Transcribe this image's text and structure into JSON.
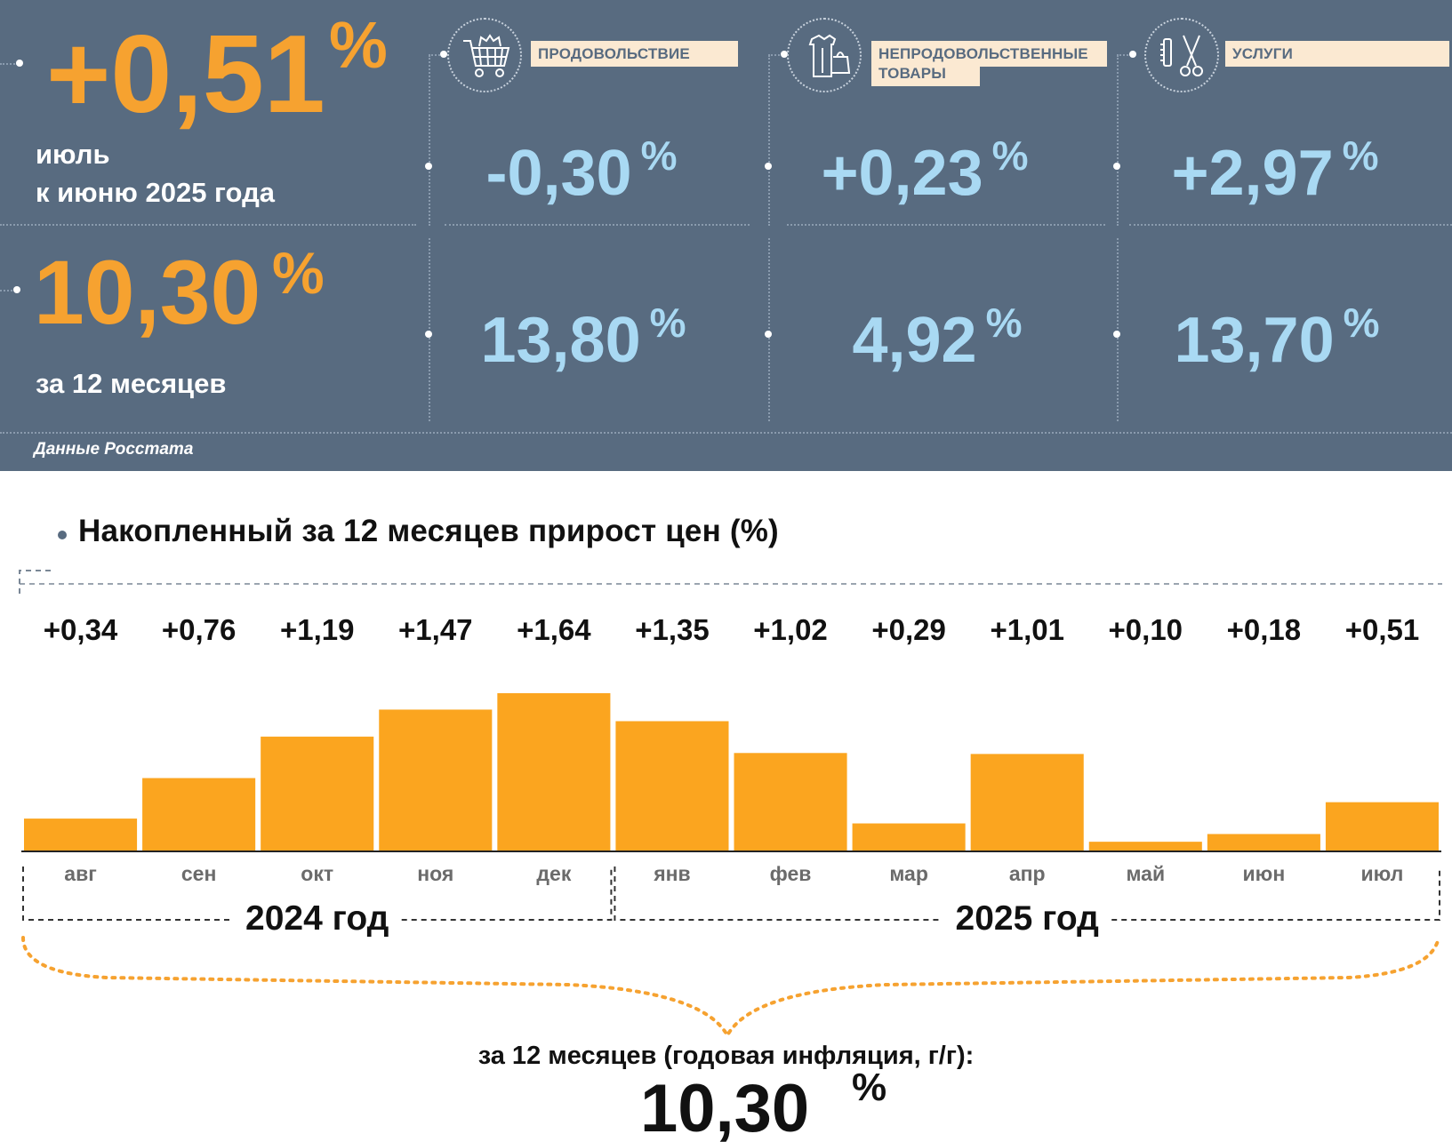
{
  "summary": {
    "month": {
      "value": "+0,51",
      "unit": "%",
      "caption_line1": "июль",
      "caption_line2": "к июню 2025 года"
    },
    "year": {
      "value": "10,30",
      "unit": "%",
      "caption": "за 12 месяцев"
    },
    "source": "Данные Росстата"
  },
  "categories": [
    {
      "label": "ПРОДОВОЛЬСТВИЕ",
      "icon": "shopping-cart-icon",
      "month": "-0,30",
      "year": "13,80",
      "unit": "%"
    },
    {
      "label": "НЕПРОДОВОЛЬСТВЕННЫЕ",
      "label2": "ТОВАРЫ",
      "icon": "clothing-bag-icon",
      "month": "+0,23",
      "year": "4,92",
      "unit": "%"
    },
    {
      "label": "УСЛУГИ",
      "icon": "comb-scissors-icon",
      "month": "+2,97",
      "year": "13,70",
      "unit": "%"
    }
  ],
  "colors": {
    "panel": "#586b80",
    "accent_orange": "#f6a230",
    "light_blue": "#a9d9f3",
    "label_bg": "#fbe9d2",
    "bar": "#fba51f"
  },
  "chart_data": {
    "type": "bar",
    "title": "Накопленный за 12 месяцев прирост цен (%)",
    "categories": [
      "авг",
      "сен",
      "окт",
      "ноя",
      "дек",
      "янв",
      "фев",
      "мар",
      "апр",
      "май",
      "июн",
      "июл"
    ],
    "values": [
      0.34,
      0.76,
      1.19,
      1.47,
      1.64,
      1.35,
      1.02,
      0.29,
      1.01,
      0.1,
      0.18,
      0.51
    ],
    "value_labels": [
      "+0,34",
      "+0,76",
      "+1,19",
      "+1,47",
      "+1,64",
      "+1,35",
      "+1,02",
      "+0,29",
      "+1,01",
      "+0,10",
      "+0,18",
      "+0,51"
    ],
    "groups": [
      {
        "label": "2024 год",
        "from": 0,
        "to": 4
      },
      {
        "label": "2025 год",
        "from": 5,
        "to": 11
      }
    ],
    "ylim": [
      0,
      1.64
    ],
    "grid": false,
    "xlabel": "",
    "ylabel": ""
  },
  "footer": {
    "caption": "за 12 месяцев (годовая инфляция, г/г):",
    "value": "10,30",
    "unit": "%"
  }
}
